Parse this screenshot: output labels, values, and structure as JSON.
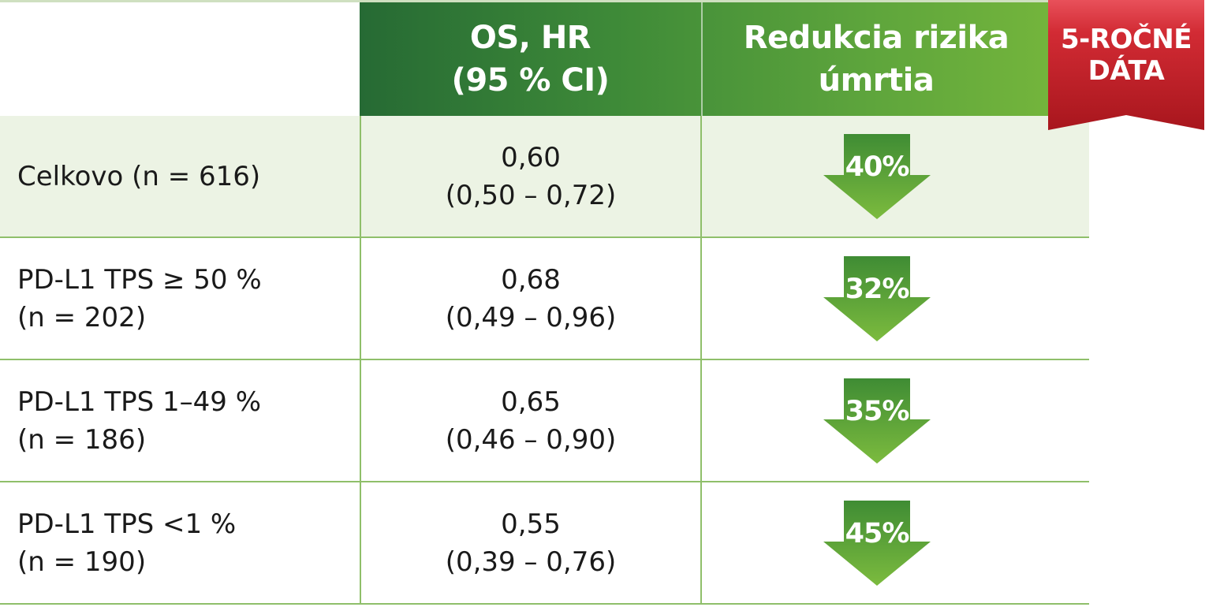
{
  "header": {
    "col_os_line1": "OS, HR",
    "col_os_line2": "(95 % CI)",
    "col_red_line1": "Redukcia rizika",
    "col_red_line2": "úmrtia"
  },
  "badge": {
    "line1": "5-ROČNÉ",
    "line2": "DÁTA"
  },
  "rows": [
    {
      "label_line1": "Celkovo (n = 616)",
      "label_line2": "",
      "hr": "0,60",
      "ci": "(0,50 – 0,72)",
      "reduction": "40%"
    },
    {
      "label_line1": "PD-L1 TPS ≥ 50 %",
      "label_line2": "(n = 202)",
      "hr": "0,68",
      "ci": "(0,49 – 0,96)",
      "reduction": "32%"
    },
    {
      "label_line1": "PD-L1 TPS 1–49 %",
      "label_line2": "(n = 186)",
      "hr": "0,65",
      "ci": "(0,46 – 0,90)",
      "reduction": "35%"
    },
    {
      "label_line1": "PD-L1 TPS <1 %",
      "label_line2": "(n = 190)",
      "hr": "0,55",
      "ci": "(0,39 – 0,76)",
      "reduction": "45%"
    }
  ],
  "colors": {
    "header_dark_green": "#266a34",
    "header_light_green": "#78b83c",
    "arrow_green": "#5aa33a",
    "ribbon_red": "#c8232b",
    "row_shade": "#ecf3e4",
    "grid_green": "#8fbf6a"
  }
}
